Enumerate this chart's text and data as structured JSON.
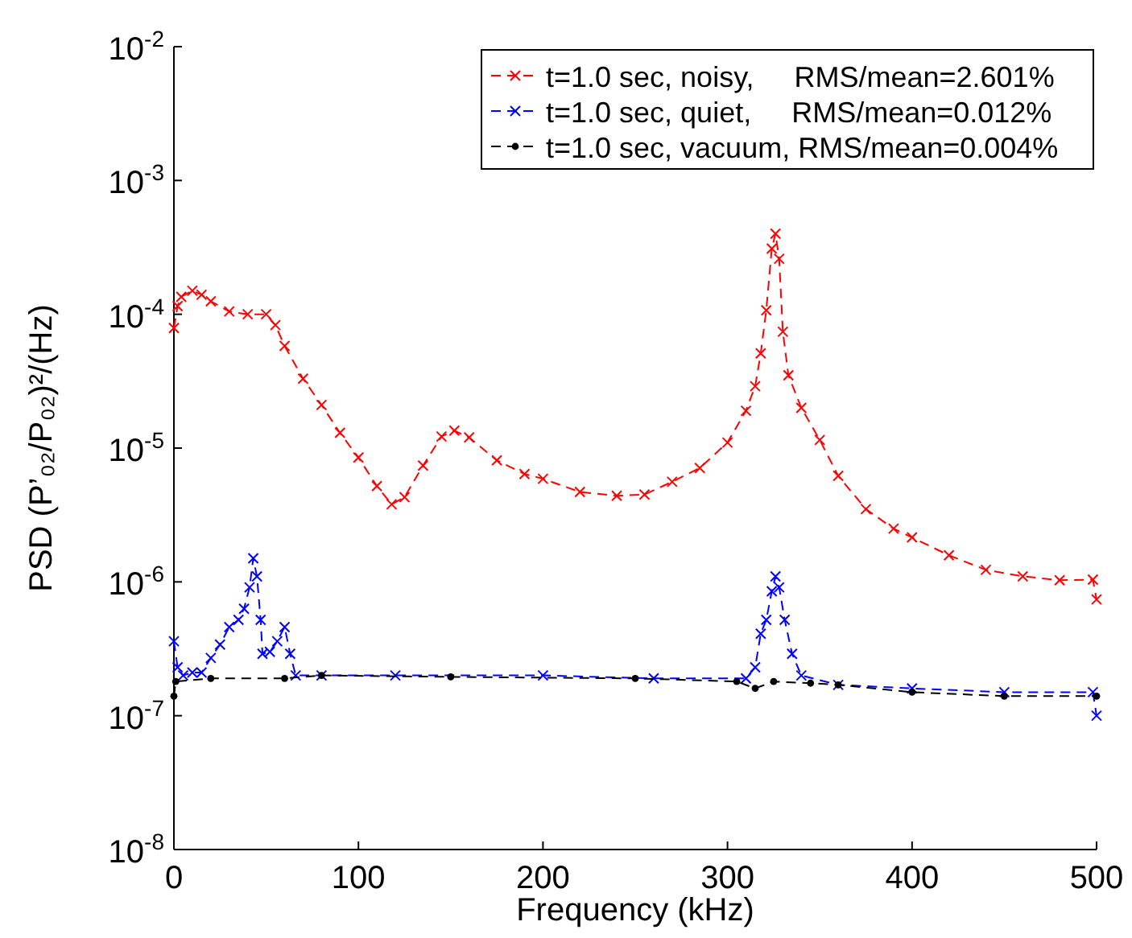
{
  "chart_data": {
    "type": "line",
    "xlabel": "Frequency (kHz)",
    "ylabel": "PSD (P’₀₂/P₀₂)²/(Hz)",
    "log": "y",
    "xlim": [
      0,
      500
    ],
    "xticks": [
      0,
      100,
      200,
      300,
      400,
      500
    ],
    "ylim": [
      1e-08,
      0.01
    ],
    "yticks": [
      {
        "value": 1e-08,
        "label": "10$^{-8}$"
      },
      {
        "value": 1e-07,
        "label": "10$^{-7}$"
      },
      {
        "value": 1e-06,
        "label": "10$^{-6}$"
      },
      {
        "value": 1e-05,
        "label": "10$^{-5}$"
      },
      {
        "value": 0.0001,
        "label": "10$^{-4}$"
      },
      {
        "value": 0.001,
        "label": "10$^{-3}$"
      },
      {
        "value": 0.01,
        "label": "10$^{-2}$"
      }
    ],
    "grid": false,
    "legend": "top right",
    "line_style": "dashed",
    "series": [
      {
        "name": "t=1.0 sec, noisy,     RMS/mean=2.601%",
        "color": "#ff0000",
        "marker": "cross",
        "x": [
          0,
          2,
          4,
          10,
          15,
          20,
          30,
          40,
          50,
          55,
          60,
          70,
          80,
          90,
          100,
          110,
          118,
          125,
          135,
          145,
          152,
          160,
          175,
          190,
          200,
          220,
          240,
          255,
          270,
          285,
          300,
          310,
          315,
          318,
          321,
          324,
          326,
          328,
          330,
          333,
          340,
          350,
          360,
          375,
          390,
          400,
          420,
          440,
          460,
          480,
          498,
          500
        ],
        "values": [
          7.9e-05,
          0.000115,
          0.000135,
          0.00015,
          0.00014,
          0.000125,
          0.000105,
          0.0001,
          0.0001,
          8.3e-05,
          5.8e-05,
          3.3e-05,
          2.1e-05,
          1.3e-05,
          8.5e-06,
          5.2e-06,
          3.8e-06,
          4.3e-06,
          7.4e-06,
          1.22e-05,
          1.35e-05,
          1.2e-05,
          8.1e-06,
          6.4e-06,
          5.9e-06,
          4.7e-06,
          4.4e-06,
          4.5e-06,
          5.6e-06,
          7.1e-06,
          1.1e-05,
          1.9e-05,
          2.9e-05,
          5.1e-05,
          0.000107,
          0.00031,
          0.0004,
          0.00026,
          7.4e-05,
          3.5e-05,
          2e-05,
          1.15e-05,
          6.2e-06,
          3.5e-06,
          2.5e-06,
          2.15e-06,
          1.58e-06,
          1.23e-06,
          1.1e-06,
          1.03e-06,
          1.04e-06,
          7.4e-07
        ]
      },
      {
        "name": "t=1.0 sec, quiet,     RMS/mean=0.012%",
        "color": "#0000ff",
        "marker": "cross",
        "x": [
          0,
          2,
          5,
          10,
          15,
          20,
          25,
          30,
          35,
          38,
          41,
          43,
          45,
          47,
          48,
          52,
          56,
          60,
          63,
          66,
          80,
          120,
          200,
          260,
          310,
          315,
          318,
          321,
          324,
          326,
          328,
          331,
          335,
          340,
          360,
          400,
          450,
          498,
          500
        ],
        "values": [
          3.6e-07,
          2.3e-07,
          2e-07,
          2.1e-07,
          2.1e-07,
          2.7e-07,
          3.4e-07,
          4.6e-07,
          5.2e-07,
          6.3e-07,
          9.1e-07,
          1.5e-06,
          1.1e-06,
          5.2e-07,
          2.9e-07,
          3e-07,
          3.6e-07,
          4.6e-07,
          2.9e-07,
          2e-07,
          2e-07,
          2e-07,
          2e-07,
          1.9e-07,
          1.9e-07,
          2.3e-07,
          4.1e-07,
          5.2e-07,
          8.5e-07,
          1.1e-06,
          9.1e-07,
          5.2e-07,
          2.9e-07,
          2e-07,
          1.7e-07,
          1.6e-07,
          1.5e-07,
          1.5e-07,
          1e-07
        ]
      },
      {
        "name": "t=1.0 sec, vacuum, RMS/mean=0.004%",
        "color": "#000000",
        "marker": "circle",
        "x": [
          0,
          1,
          20,
          60,
          80,
          150,
          250,
          305,
          315,
          325,
          345,
          360,
          400,
          450,
          500
        ],
        "values": [
          1.4e-07,
          1.8e-07,
          1.9e-07,
          1.9e-07,
          2e-07,
          1.95e-07,
          1.9e-07,
          1.8e-07,
          1.6e-07,
          1.8e-07,
          1.75e-07,
          1.7e-07,
          1.5e-07,
          1.4e-07,
          1.4e-07
        ]
      }
    ]
  }
}
